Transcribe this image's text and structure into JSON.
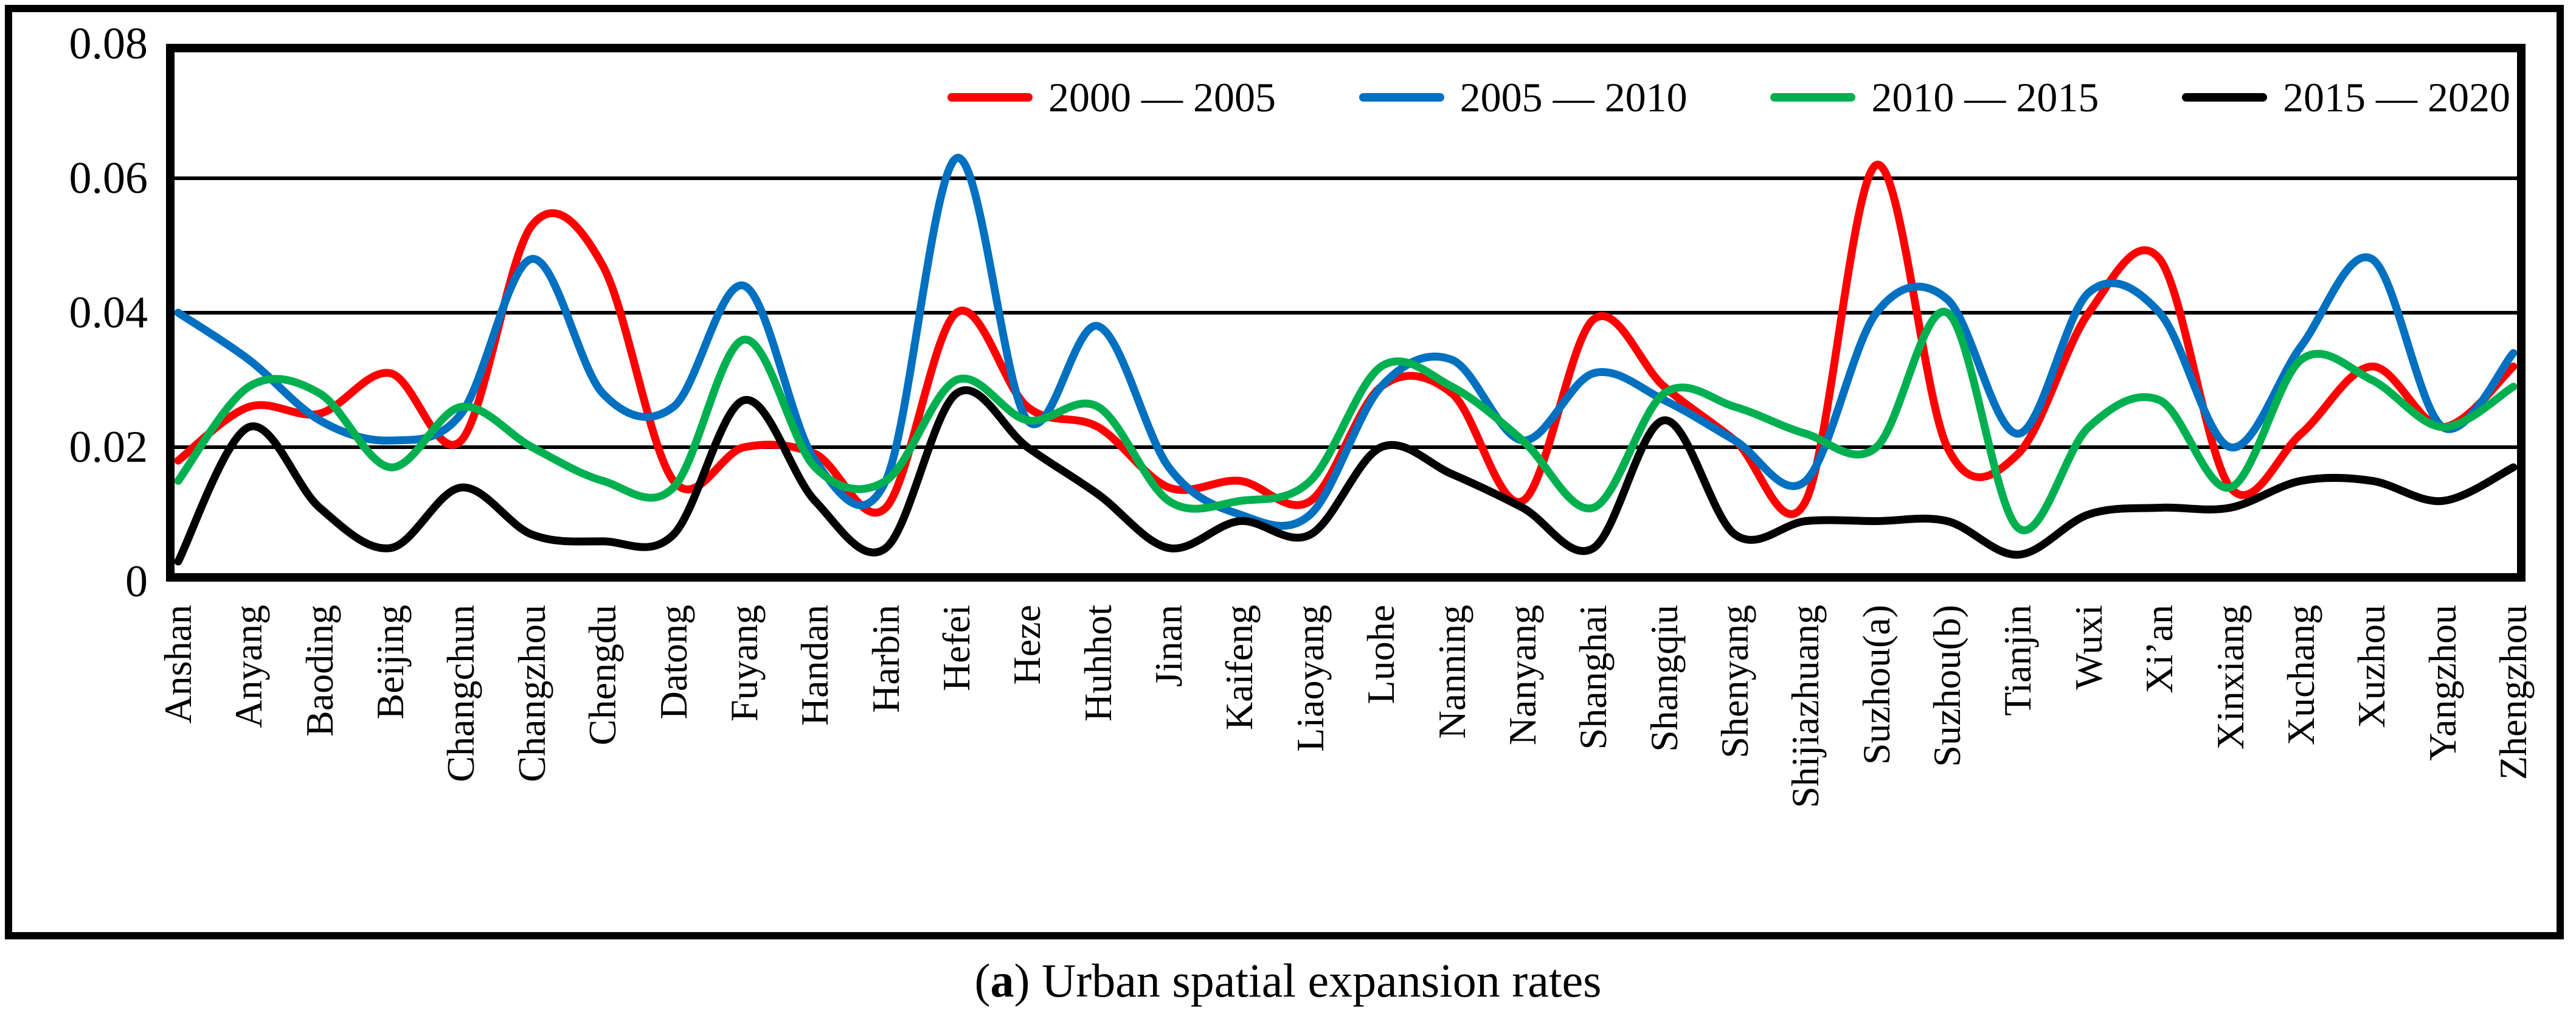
{
  "figure": {
    "caption": {
      "open": "(",
      "label": "a",
      "close": ")",
      "text": " Urban spatial expansion rates"
    }
  },
  "chart_data": {
    "type": "line",
    "title": "",
    "xlabel": "",
    "ylabel": "",
    "ylim": [
      0,
      0.08
    ],
    "yticks": [
      0,
      0.02,
      0.04,
      0.06,
      0.08
    ],
    "ytick_labels": [
      "0",
      "0.02",
      "0.04",
      "0.06",
      "0.08"
    ],
    "grid": true,
    "legend_position": "top-inside",
    "line_style": "smooth-spline",
    "categories": [
      "Anshan",
      "Anyang",
      "Baoding",
      "Beijing",
      "Changchun",
      "Changzhou",
      "Chengdu",
      "Datong",
      "Fuyang",
      "Handan",
      "Harbin",
      "Hefei",
      "Heze",
      "Huhhot",
      "Jinan",
      "Kaifeng",
      "Liaoyang",
      "Luohe",
      "Nanning",
      "Nanyang",
      "Shanghai",
      "Shangqiu",
      "Shenyang",
      "Shijiazhuang",
      "Suzhou(a)",
      "Suzhou(b)",
      "Tianjin",
      "Wuxi",
      "Xi’an",
      "Xinxiang",
      "Xuchang",
      "Xuzhou",
      "Yangzhou",
      "Zhengzhou"
    ],
    "series": [
      {
        "name": "2000 — 2005",
        "color": "#FF0000",
        "values": [
          0.018,
          0.026,
          0.025,
          0.031,
          0.021,
          0.053,
          0.047,
          0.015,
          0.02,
          0.019,
          0.011,
          0.04,
          0.026,
          0.023,
          0.014,
          0.015,
          0.012,
          0.029,
          0.028,
          0.012,
          0.039,
          0.029,
          0.021,
          0.012,
          0.062,
          0.02,
          0.019,
          0.04,
          0.048,
          0.014,
          0.022,
          0.032,
          0.023,
          0.032
        ]
      },
      {
        "name": "2005 — 2010",
        "color": "#0070C0",
        "values": [
          0.04,
          0.033,
          0.024,
          0.021,
          0.025,
          0.048,
          0.028,
          0.026,
          0.044,
          0.018,
          0.015,
          0.063,
          0.024,
          0.038,
          0.017,
          0.01,
          0.01,
          0.029,
          0.033,
          0.021,
          0.031,
          0.027,
          0.021,
          0.015,
          0.04,
          0.042,
          0.022,
          0.043,
          0.04,
          0.02,
          0.035,
          0.048,
          0.023,
          0.034
        ]
      },
      {
        "name": "2010 — 2015",
        "color": "#00B050",
        "values": [
          0.015,
          0.029,
          0.028,
          0.017,
          0.026,
          0.02,
          0.015,
          0.014,
          0.036,
          0.017,
          0.015,
          0.03,
          0.024,
          0.026,
          0.012,
          0.012,
          0.015,
          0.032,
          0.029,
          0.021,
          0.011,
          0.028,
          0.026,
          0.022,
          0.02,
          0.04,
          0.008,
          0.023,
          0.027,
          0.014,
          0.033,
          0.03,
          0.023,
          0.029
        ]
      },
      {
        "name": "2015 — 2020",
        "color": "#000000",
        "values": [
          0.003,
          0.023,
          0.011,
          0.005,
          0.014,
          0.007,
          0.006,
          0.007,
          0.027,
          0.012,
          0.005,
          0.028,
          0.02,
          0.013,
          0.005,
          0.009,
          0.007,
          0.02,
          0.016,
          0.011,
          0.005,
          0.024,
          0.007,
          0.009,
          0.009,
          0.009,
          0.004,
          0.01,
          0.011,
          0.011,
          0.015,
          0.015,
          0.012,
          0.017
        ]
      }
    ]
  }
}
